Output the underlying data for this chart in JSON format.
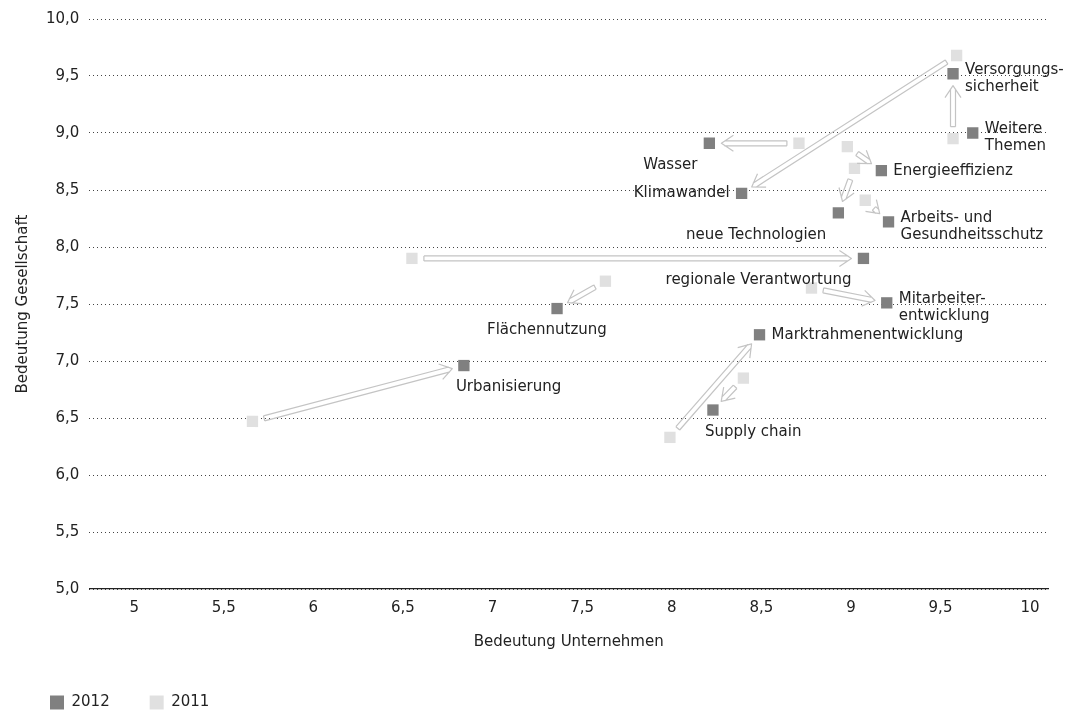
{
  "chart_data": {
    "type": "scatter",
    "xlabel": "Bedeutung Unternehmen",
    "ylabel": "Bedeutung Gesellschaft",
    "xlim": [
      4.75,
      10.1
    ],
    "ylim": [
      5,
      10
    ],
    "xticks": [
      5,
      {
        "value": 5.5,
        "label": "5,5"
      },
      6,
      {
        "value": 6.5,
        "label": "6,5"
      },
      7,
      {
        "value": 7.5,
        "label": "7,5"
      },
      8,
      {
        "value": 8.5,
        "label": "8,5"
      },
      9,
      {
        "value": 9.5,
        "label": "9,5"
      },
      10
    ],
    "yticks": [
      {
        "value": 5,
        "label": "5,0"
      },
      {
        "value": 5.5,
        "label": "5,5"
      },
      {
        "value": 6,
        "label": "6,0"
      },
      {
        "value": 6.5,
        "label": "6,5"
      },
      {
        "value": 7,
        "label": "7,0"
      },
      {
        "value": 7.5,
        "label": "7,5"
      },
      {
        "value": 8,
        "label": "8,0"
      },
      {
        "value": 8.5,
        "label": "8,5"
      },
      {
        "value": 9,
        "label": "9,0"
      },
      {
        "value": 9.5,
        "label": "9,5"
      },
      {
        "value": 10,
        "label": "10,0"
      }
    ],
    "grid": "y",
    "legend": "bottom left",
    "marker": "square",
    "series": [
      {
        "name": "2012",
        "color": "#808080",
        "x": [
          9.57,
          9.68,
          8.21,
          9.17,
          8.39,
          8.93,
          9.21,
          9.07,
          9.2,
          7.36,
          8.49,
          6.84,
          8.23
        ],
        "values": [
          9.52,
          9.0,
          8.91,
          8.67,
          8.47,
          8.3,
          8.22,
          7.9,
          7.51,
          7.46,
          7.23,
          6.96,
          6.57
        ]
      },
      {
        "name": "2011",
        "color": "#e0e0e0",
        "x": [
          9.57,
          null,
          8.71,
          8.98,
          9.59,
          9.02,
          9.08,
          6.55,
          8.78,
          7.63,
          7.99,
          5.66,
          8.4
        ],
        "values": [
          8.95,
          null,
          8.91,
          8.88,
          9.68,
          8.69,
          8.41,
          7.9,
          7.64,
          7.7,
          6.33,
          6.47,
          6.85
        ]
      }
    ],
    "annotations": [
      {
        "text": "Versorgungs-\nsicherheit",
        "x": 9.57,
        "y": 9.52
      },
      {
        "text": "Weitere\nThemen",
        "x": 9.68,
        "y": 9.0
      },
      {
        "text": "Wasser",
        "x": 8.21,
        "y": 8.91
      },
      {
        "text": "Energieeffizienz",
        "x": 9.17,
        "y": 8.67
      },
      {
        "text": "Klimawandel",
        "x": 8.39,
        "y": 8.47
      },
      {
        "text": "neue Technologien",
        "x": 8.93,
        "y": 8.3
      },
      {
        "text": "Arbeits- und\nGesundheitsschutz",
        "x": 9.21,
        "y": 8.22
      },
      {
        "text": "regionale Verantwortung",
        "x": 9.07,
        "y": 7.9
      },
      {
        "text": "Mitarbeiter-\nentwicklung",
        "x": 9.2,
        "y": 7.51
      },
      {
        "text": "Flächennutzung",
        "x": 7.36,
        "y": 7.46
      },
      {
        "text": "Marktrahmenentwicklung",
        "x": 8.49,
        "y": 7.23
      },
      {
        "text": "Urbanisierung",
        "x": 6.84,
        "y": 6.96
      },
      {
        "text": "Supply chain",
        "x": 8.23,
        "y": 6.57
      }
    ]
  }
}
